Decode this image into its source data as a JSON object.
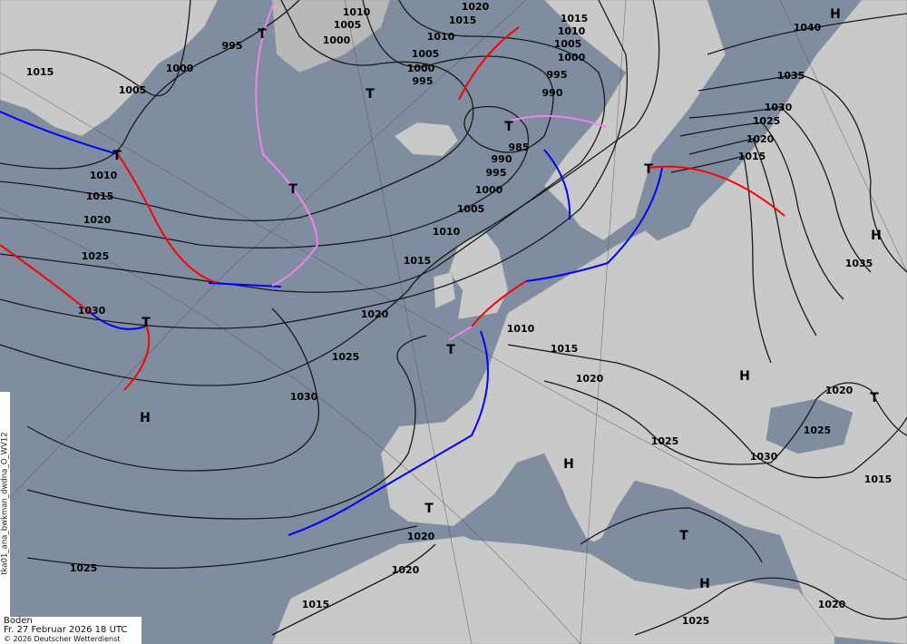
{
  "map": {
    "level": "Boden",
    "valid_time": "Fr. 27 Februar 2026 18 UTC",
    "copyright": "© 2026 Deutscher Wetterdienst",
    "product_id": "tka01_ana_bwkman_dwdna_O_WV12",
    "colors": {
      "ocean": "#808da1",
      "land": "#c9c9c9",
      "isobar": "#1a1a1a",
      "cold_front": "#0000ff",
      "warm_front": "#ff0000",
      "occlusion": "#ee82ee"
    },
    "isobar_labels": [
      "1015",
      "1005",
      "995",
      "1000",
      "1010",
      "1005",
      "1000",
      "1020",
      "1015",
      "1010",
      "1005",
      "1000",
      "995",
      "1015",
      "1010",
      "1005",
      "1000",
      "995",
      "990",
      "985",
      "990",
      "995",
      "1000",
      "1005",
      "1010",
      "1015",
      "1020",
      "1025",
      "1030",
      "1010",
      "1015",
      "1020",
      "1025",
      "1030",
      "1025",
      "1020",
      "1020",
      "1015",
      "1015",
      "1010",
      "1020",
      "1025",
      "1030",
      "1025",
      "1020",
      "1015",
      "1020",
      "1025",
      "1040",
      "1035",
      "1030",
      "1025",
      "1020",
      "1015",
      "1035"
    ],
    "pressure_centers": [
      "H",
      "T",
      "T",
      "T",
      "T",
      "T",
      "T",
      "T",
      "H",
      "T",
      "H",
      "H",
      "T",
      "T",
      "H",
      "T",
      "H"
    ]
  }
}
